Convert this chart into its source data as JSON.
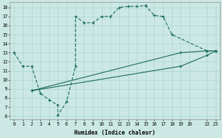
{
  "xlabel": "Humidex (Indice chaleur)",
  "bg_color": "#cce8e4",
  "line_color": "#1a6b60",
  "xlim": [
    -0.5,
    23.5
  ],
  "ylim": [
    5.6,
    18.6
  ],
  "xticks": [
    0,
    1,
    2,
    3,
    4,
    5,
    6,
    7,
    8,
    9,
    10,
    11,
    12,
    13,
    14,
    15,
    16,
    17,
    18,
    19,
    20,
    22,
    23
  ],
  "yticks": [
    6,
    7,
    8,
    9,
    10,
    11,
    12,
    13,
    14,
    15,
    16,
    17,
    18
  ],
  "curve1_x": [
    0,
    1,
    2,
    3,
    4,
    5,
    5,
    6,
    7,
    7,
    8,
    9,
    10,
    11,
    12,
    13,
    14,
    15,
    15,
    16,
    17,
    18,
    22,
    23
  ],
  "curve1_y": [
    13,
    11.5,
    11.5,
    8.5,
    7.8,
    7.2,
    6.1,
    7.6,
    11.5,
    17,
    16.3,
    16.3,
    17.0,
    17.0,
    18.0,
    18.1,
    18.1,
    18.2,
    18.2,
    17.1,
    17.0,
    15.0,
    13.2,
    13.2
  ],
  "line2_x": [
    2,
    19,
    22,
    23
  ],
  "line2_y": [
    8.8,
    13.0,
    13.2,
    13.2
  ],
  "line3_x": [
    2,
    19,
    22,
    23
  ],
  "line3_y": [
    8.8,
    11.5,
    12.7,
    13.2
  ],
  "grid_color": "#a8d5cc",
  "spine_color": "#888888"
}
